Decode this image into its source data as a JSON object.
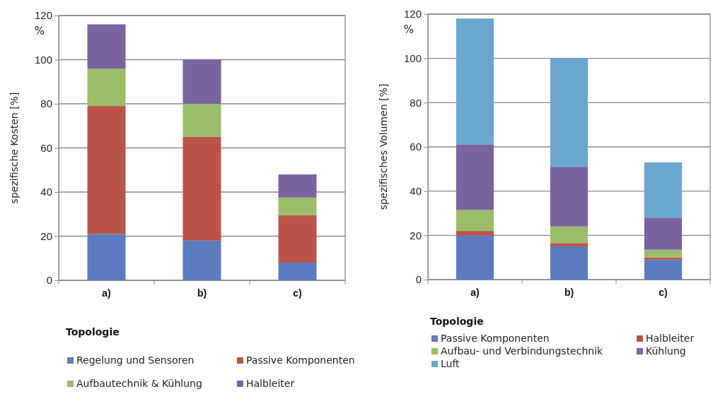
{
  "chart_data": [
    {
      "type": "bar",
      "stacked": true,
      "categories": [
        "a)",
        "b)",
        "c)"
      ],
      "ylabel": "spezifische Kosten [%]",
      "annotations": [
        "%"
      ],
      "ylim": [
        0,
        120
      ],
      "yticks": [
        0,
        20,
        40,
        60,
        80,
        100,
        120
      ],
      "grid": "y",
      "legend": "bottom",
      "legend_title": "Topologie",
      "series": [
        {
          "name": "Regelung und Sensoren",
          "color": "#5b7cc0",
          "values": [
            21,
            18,
            8
          ]
        },
        {
          "name": "Passive Komponenten",
          "color": "#bb5448",
          "values": [
            58,
            47,
            21.5
          ]
        },
        {
          "name": "Aufbautechnik & Kühlung",
          "color": "#9bbd6a",
          "values": [
            17,
            15,
            8
          ]
        },
        {
          "name": "Halbleiter",
          "color": "#7b63a0",
          "values": [
            20,
            20,
            10.5
          ]
        }
      ]
    },
    {
      "type": "bar",
      "stacked": true,
      "categories": [
        "a)",
        "b)",
        "c)"
      ],
      "ylabel": "spezifisches Volumen [%]",
      "annotations": [
        "%"
      ],
      "ylim": [
        0,
        120
      ],
      "yticks": [
        0,
        20,
        40,
        60,
        80,
        100,
        120
      ],
      "grid": "y",
      "legend": "bottom",
      "legend_title": "Topologie",
      "series": [
        {
          "name": "Passive Komponenten",
          "color": "#5b7cc0",
          "values": [
            20,
            15,
            9
          ]
        },
        {
          "name": "Halbleiter",
          "color": "#bb5448",
          "values": [
            2,
            1.5,
            1
          ]
        },
        {
          "name": "Aufbau- und Verbindungstechnik",
          "color": "#9bbd6a",
          "values": [
            9.5,
            7.5,
            3.5
          ]
        },
        {
          "name": "Kühlung",
          "color": "#7b63a0",
          "values": [
            29.5,
            27,
            14.5
          ]
        },
        {
          "name": "Luft",
          "color": "#6aa6cd",
          "values": [
            57,
            49,
            25
          ]
        }
      ]
    }
  ]
}
